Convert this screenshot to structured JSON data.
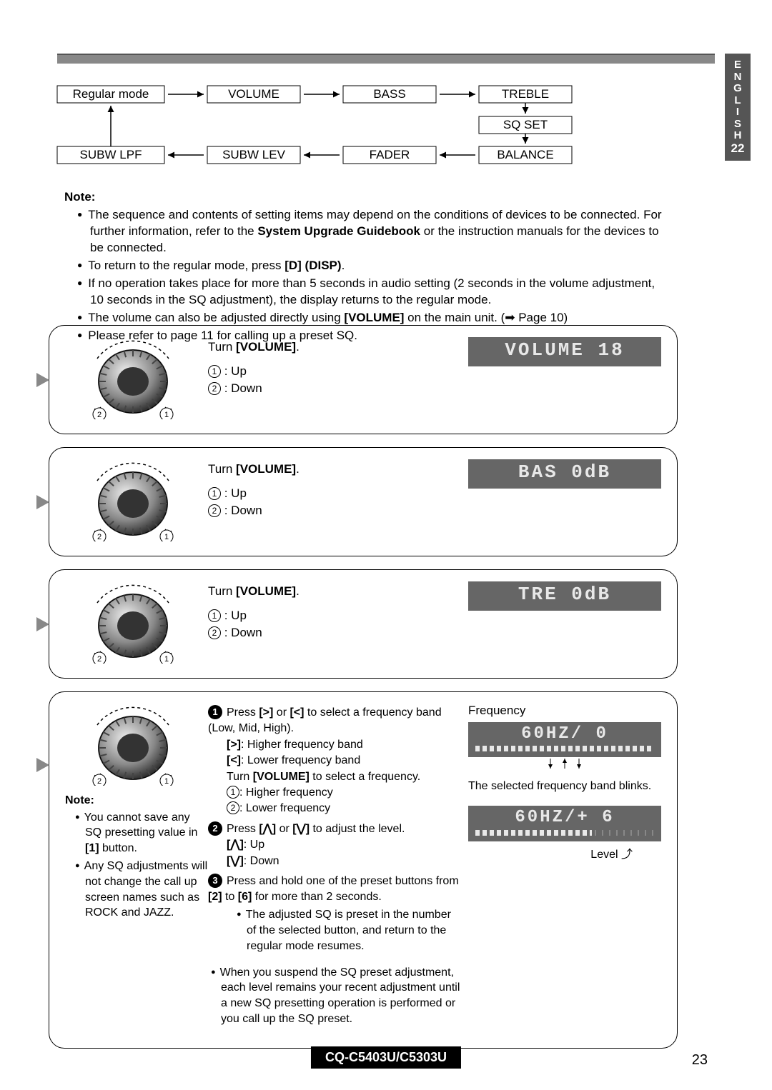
{
  "sideTab": {
    "letters": [
      "E",
      "N",
      "G",
      "L",
      "I",
      "S",
      "H"
    ],
    "page": "22"
  },
  "flow": {
    "row1": [
      "Regular mode",
      "VOLUME",
      "BASS",
      "TREBLE"
    ],
    "mid": "SQ SET",
    "row2": [
      "SUBW LPF",
      "SUBW LEV",
      "FADER",
      "BALANCE"
    ]
  },
  "notes": {
    "header": "Note:",
    "items": [
      "The sequence and contents of setting items may depend on the conditions of devices to be connected. For further information, refer to the <b>System Upgrade Guidebook</b> or the instruction manuals for the devices to be connected.",
      "To return to the regular mode, press <b>[D] (DISP)</b>.",
      "If no operation takes place for more than 5 seconds in audio setting (2 seconds in the volume adjustment, 10 seconds in the SQ adjustment), the display returns to the regular mode.",
      "The volume can also be adjusted directly using <b>[VOLUME]</b> on the main unit. (➡ Page 10)",
      "Please refer to page 11 for calling up a preset SQ."
    ]
  },
  "panels": [
    {
      "turn": "Turn <b>[VOLUME]</b>.",
      "up": ": Up",
      "down": ": Down",
      "lcd": "VOLUME  18"
    },
    {
      "turn": "Turn <b>[VOLUME]</b>.",
      "up": ": Up",
      "down": ": Down",
      "lcd": "BAS  0dB"
    },
    {
      "turn": "Turn <b>[VOLUME]</b>.",
      "up": ": Up",
      "down": ": Down",
      "lcd": "TRE  0dB"
    }
  ],
  "sq": {
    "noteHdr": "Note:",
    "note1": "You cannot save any SQ presetting value in <b>[1]</b> button.",
    "note2": "Any SQ adjustments will not change the call up screen names such as ROCK and JAZZ.",
    "step1a": "Press <b>[>]</b> or <b>[<]</b> to select a frequency band (Low, Mid, High).",
    "step1b": "<b>[>]</b>: Higher frequency band",
    "step1c": "<b>[<]</b>: Lower frequency band",
    "step1d": "Turn <b>[VOLUME]</b> to select a frequency.",
    "step1e": ": Higher frequency",
    "step1f": ": Lower frequency",
    "step2": "Press <b>[⋀]</b> or <b>[⋁]</b> to adjust the level.",
    "step2a": "<b>[⋀]</b>: Up",
    "step2b": "<b>[⋁]</b>: Down",
    "step3": "Press and hold one of the preset buttons from <b>[2]</b> to <b>[6]</b> for more than 2 seconds.",
    "step3a": "The adjusted SQ is preset in the number of the selected button, and return to the regular mode resumes.",
    "suspend": "When you suspend the SQ preset adjustment, each level remains your recent adjustment until a new SQ presetting operation is performed or you call up the SQ preset.",
    "freqLabel": "Frequency",
    "lcd1": "60HZ/  0",
    "selNote": "The selected frequency band blinks.",
    "lcd2": "60HZ/+ 6",
    "levLabel": "Level"
  },
  "footer": {
    "model": "CQ-C5403U/C5303U",
    "page": "23"
  },
  "colors": {
    "lcdBg": "#666666",
    "lcdFg": "#e8e8e8",
    "sideBg": "#555555"
  }
}
